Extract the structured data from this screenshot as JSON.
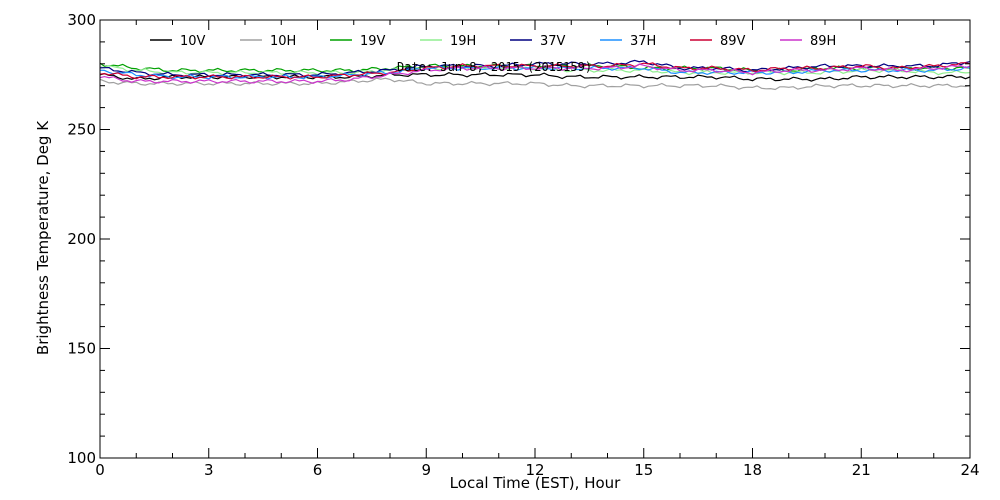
{
  "chart_data": {
    "type": "line",
    "title": "",
    "annotation": "Date: Jun 8, 2015 (2015159)",
    "xlabel": "Local Time (EST), Hour",
    "ylabel": "Brightness Temperature, Deg K",
    "xlim": [
      0,
      24
    ],
    "ylim": [
      100,
      300
    ],
    "xticks": [
      0,
      3,
      6,
      9,
      12,
      15,
      18,
      21,
      24
    ],
    "xtick_labels": [
      "0",
      "3",
      "6",
      "9",
      "12",
      "15",
      "18",
      "21",
      "24"
    ],
    "yticks": [
      100,
      150,
      200,
      250,
      300
    ],
    "ytick_labels": [
      "100",
      "150",
      "200",
      "250",
      "300"
    ],
    "grid": false,
    "legend_position": "top",
    "x": [
      0,
      1,
      2,
      3,
      4,
      5,
      6,
      7,
      8,
      9,
      10,
      11,
      12,
      13,
      14,
      15,
      16,
      17,
      18,
      19,
      20,
      21,
      22,
      23,
      24
    ],
    "series": [
      {
        "name": "10V",
        "color": "#000000",
        "values": [
          275,
          273,
          274,
          274,
          274,
          274,
          274,
          274,
          275,
          275,
          275,
          275,
          275,
          274,
          274,
          274,
          274,
          274,
          273,
          273,
          273,
          274,
          274,
          274,
          274
        ]
      },
      {
        "name": "10H",
        "color": "#a0a0a0",
        "values": [
          272,
          271,
          271,
          271,
          271,
          271,
          271,
          272,
          273,
          271,
          271,
          271,
          271,
          270,
          270,
          270,
          270,
          270,
          269,
          269,
          270,
          270,
          270,
          270,
          270
        ]
      },
      {
        "name": "19V",
        "color": "#00a000",
        "values": [
          280,
          278,
          277,
          277,
          277,
          277,
          277,
          277,
          278,
          279,
          279,
          279,
          279,
          279,
          279,
          278,
          278,
          278,
          277,
          277,
          278,
          278,
          278,
          278,
          278
        ]
      },
      {
        "name": "19H",
        "color": "#90ee90",
        "values": [
          279,
          277,
          276,
          276,
          276,
          276,
          276,
          276,
          277,
          278,
          278,
          278,
          278,
          277,
          277,
          277,
          276,
          276,
          276,
          276,
          276,
          277,
          277,
          276,
          276
        ]
      },
      {
        "name": "37V",
        "color": "#000080",
        "values": [
          278,
          276,
          275,
          275,
          275,
          275,
          275,
          276,
          277,
          279,
          279,
          279,
          280,
          280,
          280,
          281,
          278,
          278,
          277,
          278,
          279,
          279,
          279,
          279,
          281
        ]
      },
      {
        "name": "37H",
        "color": "#1e90ff",
        "values": [
          277,
          275,
          274,
          274,
          274,
          274,
          274,
          275,
          276,
          278,
          278,
          278,
          278,
          278,
          278,
          278,
          276,
          276,
          276,
          276,
          277,
          277,
          277,
          277,
          278
        ]
      },
      {
        "name": "89V",
        "color": "#cc0033",
        "values": [
          276,
          274,
          274,
          274,
          274,
          274,
          274,
          275,
          276,
          278,
          279,
          279,
          279,
          279,
          279,
          280,
          278,
          278,
          277,
          278,
          278,
          279,
          278,
          279,
          280
        ]
      },
      {
        "name": "89H",
        "color": "#cc33cc",
        "values": [
          274,
          272,
          272,
          272,
          272,
          272,
          272,
          273,
          275,
          277,
          278,
          278,
          278,
          278,
          278,
          279,
          277,
          277,
          276,
          277,
          277,
          278,
          277,
          278,
          279
        ]
      }
    ]
  }
}
